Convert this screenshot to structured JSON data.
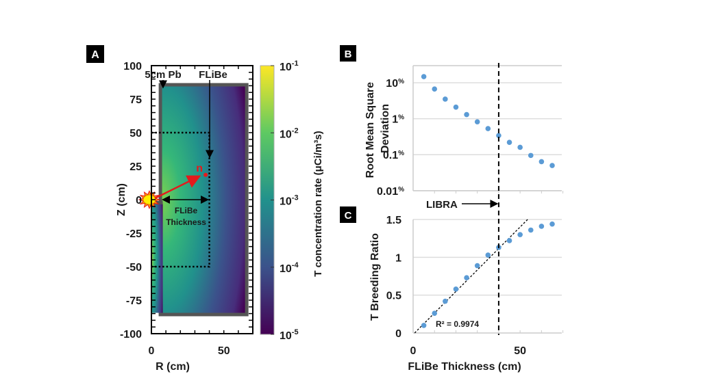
{
  "chart_data": [
    {
      "panel": "A",
      "type": "heatmap",
      "xlabel": "R (cm)",
      "ylabel": "Z (cm)",
      "xlim": [
        0,
        70
      ],
      "ylim": [
        -100,
        100
      ],
      "xticks": [
        "0",
        "50"
      ],
      "xtick_values": [
        0,
        50
      ],
      "yticks": [
        "100",
        "75",
        "50",
        "25",
        "0",
        "-25",
        "-50",
        "-75",
        "-100"
      ],
      "ytick_values": [
        100,
        75,
        50,
        25,
        0,
        -25,
        -50,
        -75,
        -100
      ],
      "colorbar": {
        "label": "T concentration rate (μCi/m³s)",
        "scale": "log",
        "range": [
          1e-05,
          0.1
        ],
        "ticks": [
          {
            "base": "10",
            "exp": "-1",
            "value": 0.1
          },
          {
            "base": "10",
            "exp": "-2",
            "value": 0.01
          },
          {
            "base": "10",
            "exp": "-3",
            "value": 0.001
          },
          {
            "base": "10",
            "exp": "-4",
            "value": 0.0001
          },
          {
            "base": "10",
            "exp": "-5",
            "value": 1e-05
          }
        ],
        "colors": [
          "#440154",
          "#3b528b",
          "#21918c",
          "#5ec962",
          "#fde725"
        ]
      },
      "annotations": {
        "pb_label": "5cm Pb",
        "flibe_label": "FLiBe",
        "neutron_label": "n",
        "thickness_label_1": "FLiBe",
        "thickness_label_2": "Thickness"
      },
      "geometry_data": {
        "pb_shell_outer_r": 67,
        "pb_shell_z": [
          -87,
          87
        ],
        "pb_inner_r": 5,
        "dotted_box_r": 40,
        "dotted_box_z": [
          -50,
          50
        ],
        "source_rz": [
          0,
          0
        ],
        "neutron_rz": [
          36,
          19
        ]
      }
    },
    {
      "panel": "B",
      "type": "scatter",
      "xlabel": "",
      "ylabel": "Root Mean Square Deviation",
      "yscale": "log",
      "ylim": [
        0.01,
        20
      ],
      "xlim": [
        0,
        70
      ],
      "yticks": [
        {
          "label": "10",
          "unit": "%",
          "value": 10
        },
        {
          "label": "1",
          "unit": "%",
          "value": 1
        },
        {
          "label": "0.1",
          "unit": "%",
          "value": 0.1
        },
        {
          "label": "0.01",
          "unit": "%",
          "value": 0.01
        }
      ],
      "x": [
        5,
        10,
        15,
        20,
        25,
        30,
        35,
        40,
        45,
        50,
        55,
        60,
        65
      ],
      "values": [
        14.8,
        6.7,
        3.5,
        2.1,
        1.3,
        0.82,
        0.53,
        0.34,
        0.22,
        0.16,
        0.095,
        0.064,
        0.05
      ],
      "grid": true,
      "marker_color": "#5b9bd5",
      "vline": {
        "x": 40,
        "label": "LIBRA"
      }
    },
    {
      "panel": "C",
      "type": "scatter",
      "xlabel": "FLiBe Thickness (cm)",
      "ylabel": "T Breeding Ratio",
      "xlim": [
        0,
        70
      ],
      "ylim": [
        0,
        1.5
      ],
      "xticks": [
        "0",
        "50"
      ],
      "xtick_values": [
        0,
        50
      ],
      "yticks": [
        "1.5",
        "1",
        "0.5",
        "0"
      ],
      "ytick_values": [
        1.5,
        1,
        0.5,
        0
      ],
      "x": [
        5,
        10,
        15,
        20,
        25,
        30,
        35,
        40,
        45,
        50,
        55,
        60,
        65
      ],
      "values": [
        0.1,
        0.26,
        0.42,
        0.58,
        0.73,
        0.89,
        1.03,
        1.13,
        1.22,
        1.3,
        1.36,
        1.41,
        1.44
      ],
      "grid": true,
      "marker_color": "#5b9bd5",
      "trendline": {
        "type": "linear",
        "x0": 0.7,
        "x1": 53.5,
        "y0": 0,
        "y1": 1.5,
        "r2_label": "R² = 0.9974"
      },
      "vline": {
        "x": 40
      }
    }
  ],
  "panel_labels": [
    "A",
    "B",
    "C"
  ]
}
